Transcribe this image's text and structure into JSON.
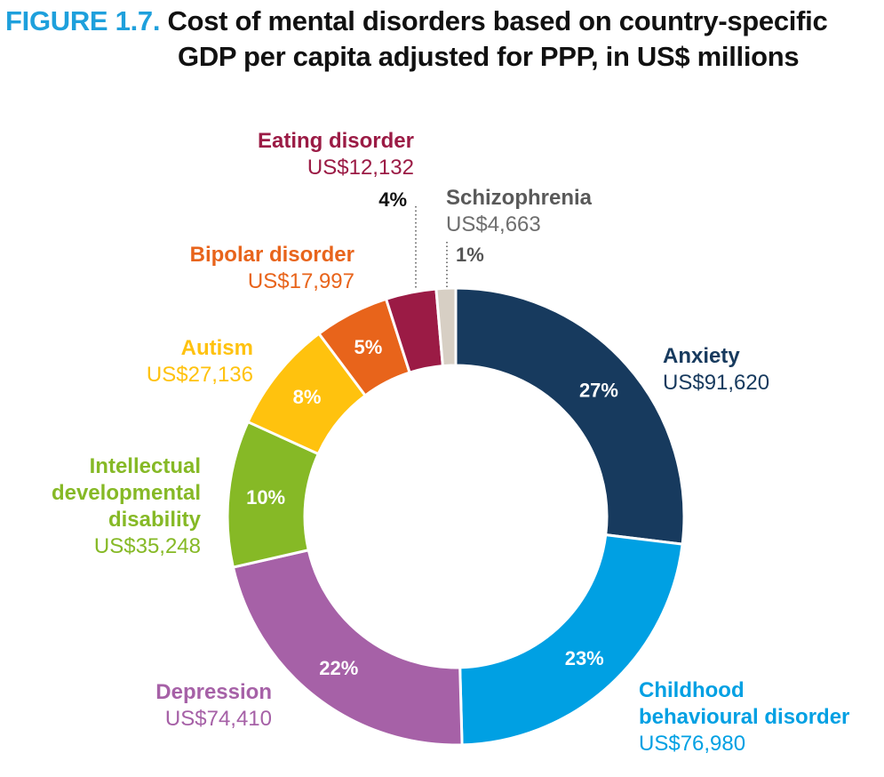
{
  "header": {
    "figure_label": "FIGURE 1.7.",
    "title_line1": "Cost of mental disorders based on country-specific",
    "title_line2": "GDP per capita adjusted for PPP, in US$ millions"
  },
  "chart_data": {
    "type": "pie",
    "donut": true,
    "unit": "US$ millions",
    "slices": [
      {
        "name": "Anxiety",
        "value": 91620,
        "value_label": "US$91,620",
        "pct_label": "27%",
        "color": "#173a5e",
        "pct_color": "#ffffff"
      },
      {
        "name": "Childhood behavioural disorder",
        "value": 76980,
        "value_label": "US$76,980",
        "pct_label": "23%",
        "color": "#00a0e3",
        "pct_color": "#ffffff"
      },
      {
        "name": "Depression",
        "value": 74410,
        "value_label": "US$74,410",
        "pct_label": "22%",
        "color": "#a661a7",
        "pct_color": "#ffffff"
      },
      {
        "name": "Intellectual developmental disability",
        "value": 35248,
        "value_label": "US$35,248",
        "pct_label": "10%",
        "color": "#86b926",
        "pct_color": "#ffffff"
      },
      {
        "name": "Autism",
        "value": 27136,
        "value_label": "US$27,136",
        "pct_label": "8%",
        "color": "#ffc20e",
        "pct_color": "#ffffff"
      },
      {
        "name": "Bipolar disorder",
        "value": 17997,
        "value_label": "US$17,997",
        "pct_label": "5%",
        "color": "#e8641b",
        "pct_color": "#ffffff"
      },
      {
        "name": "Eating disorder",
        "value": 12132,
        "value_label": "US$12,132",
        "pct_label": "4%",
        "color": "#9b1b45",
        "pct_color": "#111111"
      },
      {
        "name": "Schizophrenia",
        "value": 4663,
        "value_label": "US$4,663",
        "pct_label": "1%",
        "color": "#d7cfc4",
        "pct_color": "#555555",
        "name_color": "#595959"
      }
    ]
  }
}
